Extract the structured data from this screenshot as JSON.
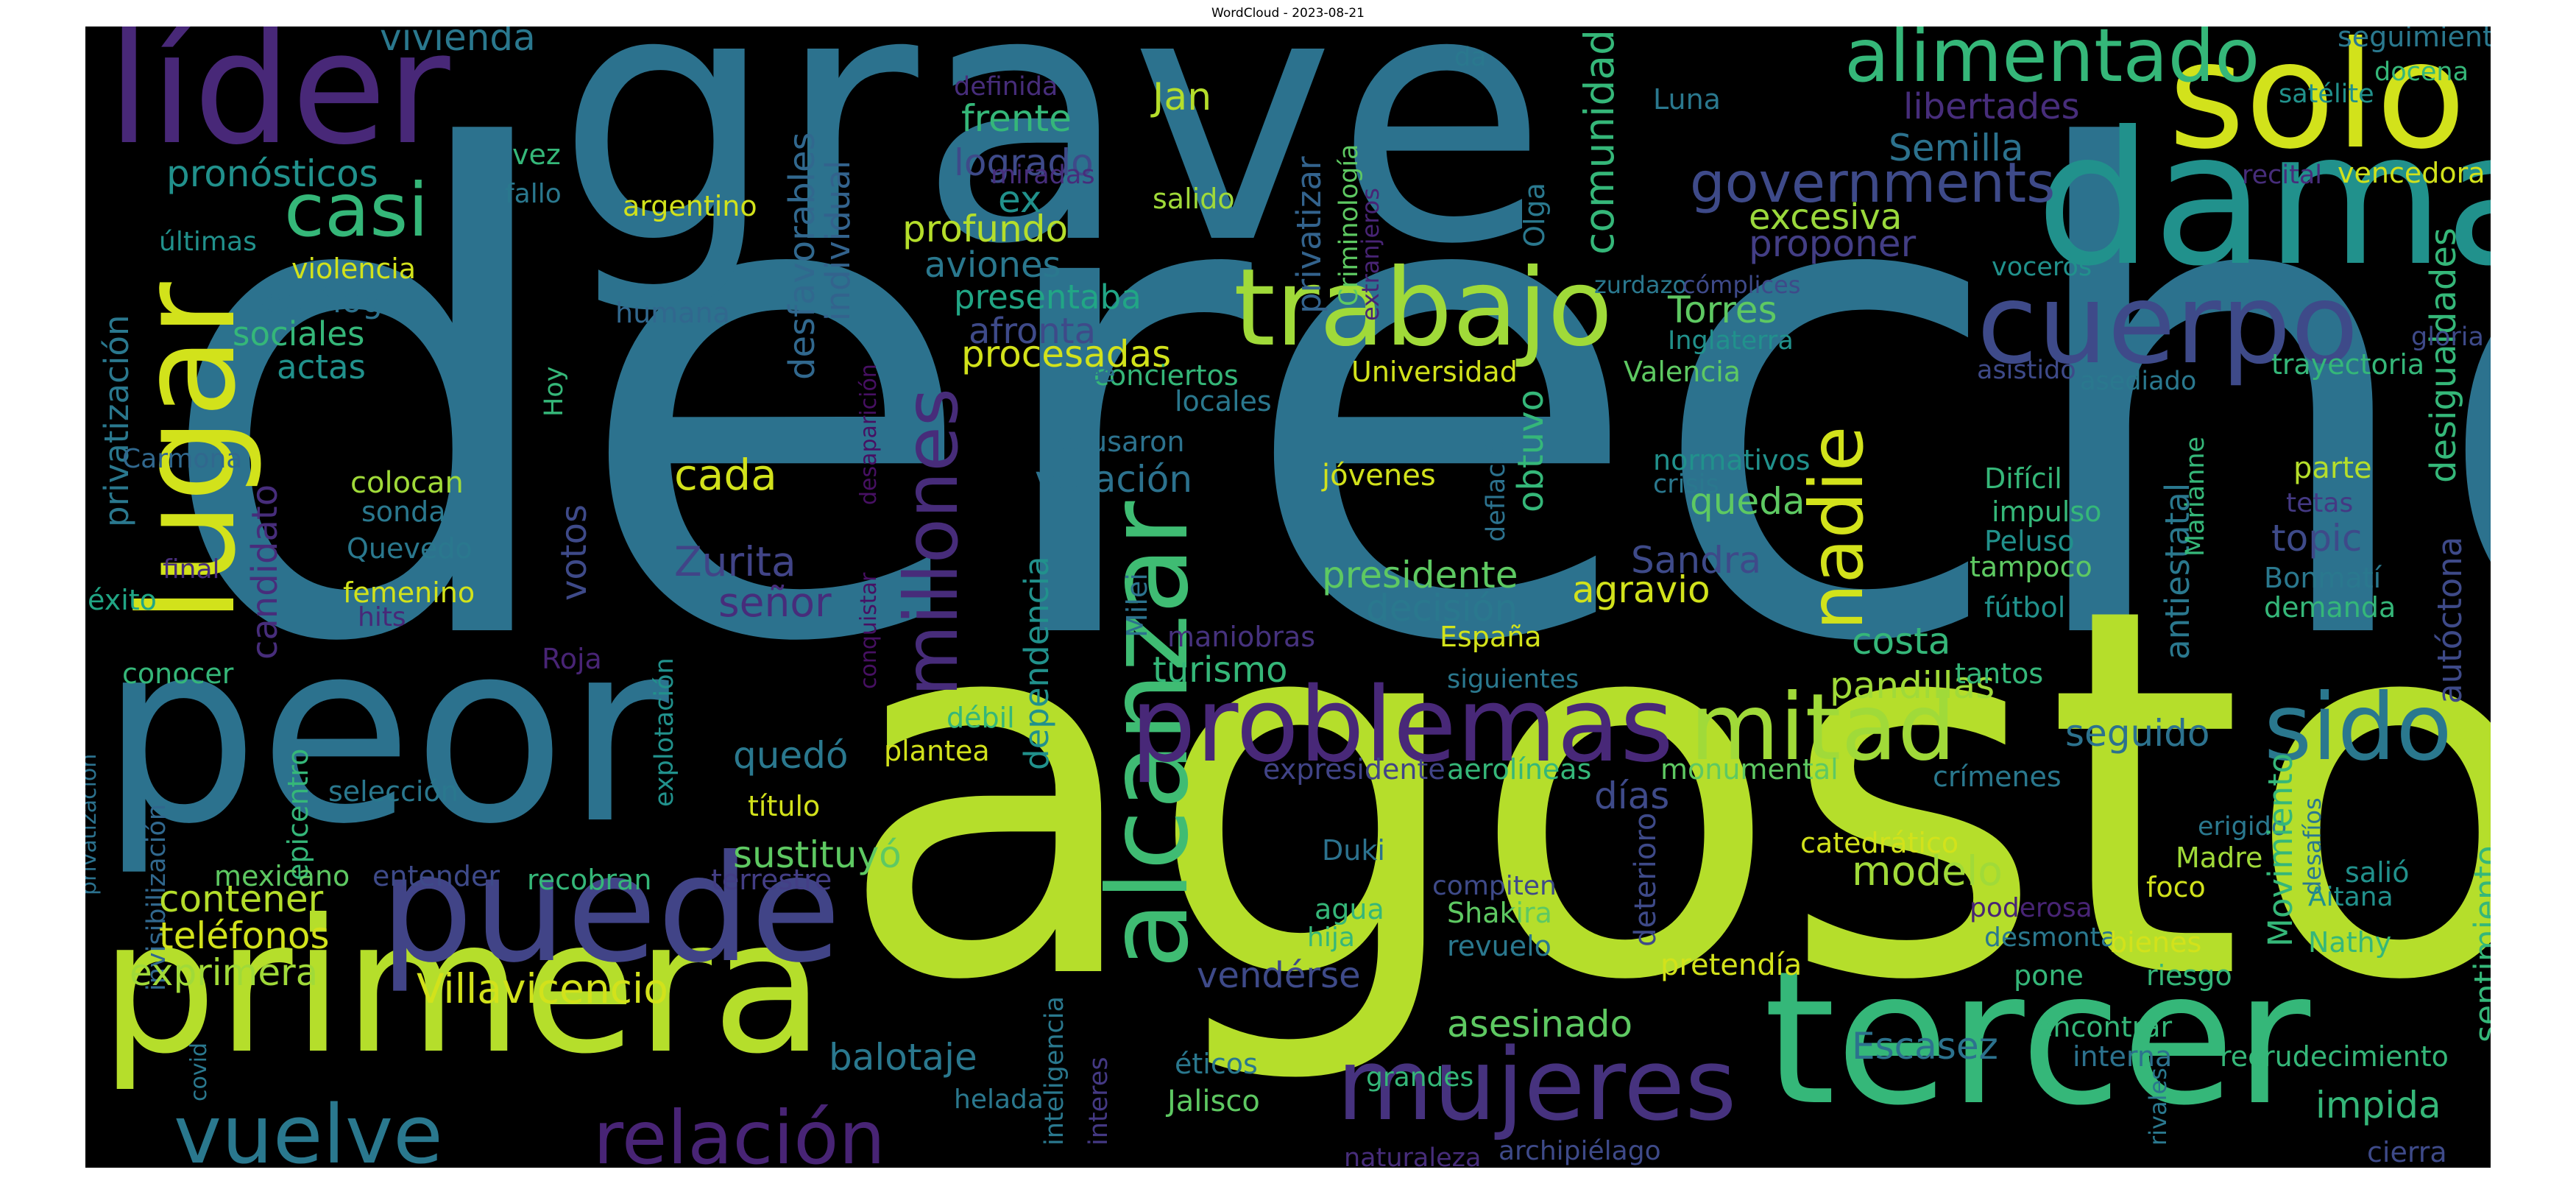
{
  "figure": {
    "title": "WordCloud - 2023-08-21",
    "background": "#000000",
    "colormap": [
      "#440154",
      "#3b528b",
      "#21908d",
      "#5dc963",
      "#c8e020"
    ]
  },
  "words": [
    {
      "text": "derecho",
      "color": "#2c728e"
    },
    {
      "text": "agosto",
      "color": "#b5de2b"
    },
    {
      "text": "grave",
      "color": "#2c728e"
    },
    {
      "text": "peor",
      "color": "#2c728e"
    },
    {
      "text": "primera",
      "color": "#b5de2b"
    },
    {
      "text": "tercer",
      "color": "#35b779"
    },
    {
      "text": "dama",
      "color": "#21918c"
    },
    {
      "text": "solo",
      "color": "#d2e21b"
    },
    {
      "text": "líder",
      "color": "#482878"
    },
    {
      "text": "lugar",
      "color": "#d2e21b"
    },
    {
      "text": "puede",
      "color": "#414487"
    },
    {
      "text": "alcanzar",
      "color": "#3fbc73"
    },
    {
      "text": "trabajo",
      "color": "#a0da39"
    },
    {
      "text": "cuerpo",
      "color": "#3e4a89"
    },
    {
      "text": "problemas",
      "color": "#482878"
    },
    {
      "text": "mitad",
      "color": "#a0da39"
    },
    {
      "text": "sido",
      "color": "#2a788e"
    },
    {
      "text": "mujeres",
      "color": "#46327e"
    },
    {
      "text": "vuelve",
      "color": "#2a788e"
    },
    {
      "text": "relación",
      "color": "#482475"
    },
    {
      "text": "alimentado",
      "color": "#35b779"
    },
    {
      "text": "casi",
      "color": "#35b779"
    },
    {
      "text": "nadie",
      "color": "#d2e21b"
    },
    {
      "text": "millones",
      "color": "#472c7a"
    },
    {
      "text": "governments",
      "color": "#3e4a89"
    },
    {
      "text": "pronósticos",
      "color": "#21918c"
    },
    {
      "text": "vivienda",
      "color": "#2a788e"
    },
    {
      "text": "libertades",
      "color": "#472d7b"
    },
    {
      "text": "Semilla",
      "color": "#2c728e"
    },
    {
      "text": "excesiva",
      "color": "#9bd93c"
    },
    {
      "text": "proponer",
      "color": "#433e85"
    },
    {
      "text": "comunidad",
      "color": "#35b779"
    },
    {
      "text": "frente",
      "color": "#35b779"
    },
    {
      "text": "logrado",
      "color": "#3e4a89"
    },
    {
      "text": "ex",
      "color": "#21918c"
    },
    {
      "text": "profundo",
      "color": "#b5de2b"
    },
    {
      "text": "aviones",
      "color": "#2a788e"
    },
    {
      "text": "presentaba",
      "color": "#21a685"
    },
    {
      "text": "afronta",
      "color": "#3e4a89"
    },
    {
      "text": "procesadas",
      "color": "#d2e21b"
    },
    {
      "text": "Jan",
      "color": "#b5de2b"
    },
    {
      "text": "desfavorables",
      "color": "#31688e"
    },
    {
      "text": "individual",
      "color": "#33638d"
    },
    {
      "text": "sociólogo",
      "color": "#2c728e"
    },
    {
      "text": "sociales",
      "color": "#35b779"
    },
    {
      "text": "actas",
      "color": "#21918c"
    },
    {
      "text": "violencia",
      "color": "#d2e21b"
    },
    {
      "text": "humana",
      "color": "#31688e"
    },
    {
      "text": "privatización",
      "color": "#2a788e"
    },
    {
      "text": "privatización",
      "color": "#2c728e"
    },
    {
      "text": "privatizar",
      "color": "#33638d"
    },
    {
      "text": "Criminología",
      "color": "#5ec962"
    },
    {
      "text": "extranjeros",
      "color": "#482475"
    },
    {
      "text": "Olga",
      "color": "#2a788e"
    },
    {
      "text": "Torres",
      "color": "#5ec962"
    },
    {
      "text": "zurdazo",
      "color": "#2a788e"
    },
    {
      "text": "cómplices",
      "color": "#3e4a89"
    },
    {
      "text": "Inglaterra",
      "color": "#21918c"
    },
    {
      "text": "Valencia",
      "color": "#5ec962"
    },
    {
      "text": "Universidad",
      "color": "#d2e21b"
    },
    {
      "text": "conciertos",
      "color": "#35b779"
    },
    {
      "text": "cree",
      "color": "#2c728e"
    },
    {
      "text": "locales",
      "color": "#2a788e"
    },
    {
      "text": "cada",
      "color": "#d2e21b"
    },
    {
      "text": "votación",
      "color": "#2c728e"
    },
    {
      "text": "causaron",
      "color": "#2c728e"
    },
    {
      "text": "jóvenes",
      "color": "#d2e21b"
    },
    {
      "text": "Zurita",
      "color": "#414487"
    },
    {
      "text": "señor",
      "color": "#472d7b"
    },
    {
      "text": "votos",
      "color": "#3e4a89"
    },
    {
      "text": "colocan",
      "color": "#a0da39"
    },
    {
      "text": "sonda",
      "color": "#2a788e"
    },
    {
      "text": "Quevedo",
      "color": "#2a788e"
    },
    {
      "text": "femenino",
      "color": "#d2e21b"
    },
    {
      "text": "hits",
      "color": "#482878"
    },
    {
      "text": "final",
      "color": "#472d7b"
    },
    {
      "text": "éxito",
      "color": "#21a685"
    },
    {
      "text": "Carmona",
      "color": "#31688e"
    },
    {
      "text": "candidato",
      "color": "#472d7b"
    },
    {
      "text": "conocer",
      "color": "#35b779"
    },
    {
      "text": "Roja",
      "color": "#482475"
    },
    {
      "text": "Hoy",
      "color": "#35b779"
    },
    {
      "text": "desaparición",
      "color": "#471063"
    },
    {
      "text": "conquistar",
      "color": "#471063"
    },
    {
      "text": "dependencia",
      "color": "#21918c"
    },
    {
      "text": "Milei",
      "color": "#2c728e"
    },
    {
      "text": "turismo",
      "color": "#35b779"
    },
    {
      "text": "presidente",
      "color": "#5ec962"
    },
    {
      "text": "decisión",
      "color": "#2a788e"
    },
    {
      "text": "obtuvo",
      "color": "#35b779"
    },
    {
      "text": "deflación",
      "color": "#2c728e"
    },
    {
      "text": "queda",
      "color": "#5ec962"
    },
    {
      "text": "Sandra",
      "color": "#3e4a89"
    },
    {
      "text": "agravio",
      "color": "#d2e21b"
    },
    {
      "text": "costa",
      "color": "#35b779"
    },
    {
      "text": "pandillas",
      "color": "#a0da39"
    },
    {
      "text": "seguido",
      "color": "#2c728e"
    },
    {
      "text": "maniobras",
      "color": "#46327e"
    },
    {
      "text": "España",
      "color": "#d2e21b"
    },
    {
      "text": "siguientes",
      "color": "#2a788e"
    },
    {
      "text": "normativos",
      "color": "#21918c"
    },
    {
      "text": "crisis",
      "color": "#2a788e"
    },
    {
      "text": "Difícil",
      "color": "#35b779"
    },
    {
      "text": "impulso",
      "color": "#35b779"
    },
    {
      "text": "Peluso",
      "color": "#21918c"
    },
    {
      "text": "tampoco",
      "color": "#5ec962"
    },
    {
      "text": "fútbol",
      "color": "#21918c"
    },
    {
      "text": "tantos",
      "color": "#35b779"
    },
    {
      "text": "antiestatal",
      "color": "#2a788e"
    },
    {
      "text": "Marianne",
      "color": "#35b779"
    },
    {
      "text": "parte",
      "color": "#b5de2b"
    },
    {
      "text": "tetas",
      "color": "#443983"
    },
    {
      "text": "topic",
      "color": "#3e4a89"
    },
    {
      "text": "Bonmatí",
      "color": "#2a788e"
    },
    {
      "text": "demanda",
      "color": "#35b779"
    },
    {
      "text": "desigualdades",
      "color": "#35b779"
    },
    {
      "text": "autóctona",
      "color": "#3e4a89"
    },
    {
      "text": "seguimiento",
      "color": "#2a788e"
    },
    {
      "text": "docena",
      "color": "#35b779"
    },
    {
      "text": "satélite",
      "color": "#21918c"
    },
    {
      "text": "recital",
      "color": "#472d7b"
    },
    {
      "text": "vencedora",
      "color": "#d2e21b"
    },
    {
      "text": "voceros",
      "color": "#21918c"
    },
    {
      "text": "asistido",
      "color": "#3e4a89"
    },
    {
      "text": "asediado",
      "color": "#2a788e"
    },
    {
      "text": "trayectoria",
      "color": "#35b779"
    },
    {
      "text": "gloria",
      "color": "#3e4a89"
    },
    {
      "text": "Luna",
      "color": "#2a788e"
    },
    {
      "text": "da",
      "color": "#2a788e"
    },
    {
      "text": "definida",
      "color": "#472d7b"
    },
    {
      "text": "miradas",
      "color": "#472d7b"
    },
    {
      "text": "salido",
      "color": "#a0da39"
    },
    {
      "text": "argentino",
      "color": "#d2e21b"
    },
    {
      "text": "fallo",
      "color": "#2a788e"
    },
    {
      "text": "vez",
      "color": "#35b779"
    },
    {
      "text": "últimas",
      "color": "#21918c"
    },
    {
      "text": "epicentro",
      "color": "#35b779"
    },
    {
      "text": "invisibilización",
      "color": "#31688e"
    },
    {
      "text": "selección",
      "color": "#2a788e"
    },
    {
      "text": "mexicano",
      "color": "#5ec962"
    },
    {
      "text": "entender",
      "color": "#3e4a89"
    },
    {
      "text": "recobran",
      "color": "#35b779"
    },
    {
      "text": "terrestre",
      "color": "#433e85"
    },
    {
      "text": "explotación",
      "color": "#21918c"
    },
    {
      "text": "quedó",
      "color": "#2a788e"
    },
    {
      "text": "débil",
      "color": "#35b779"
    },
    {
      "text": "plantea",
      "color": "#d2e21b"
    },
    {
      "text": "título",
      "color": "#d2e21b"
    },
    {
      "text": "sustituyó",
      "color": "#5ec962"
    },
    {
      "text": "contener",
      "color": "#b5de2b"
    },
    {
      "text": "teléfonos",
      "color": "#d2e21b"
    },
    {
      "text": "exprimera",
      "color": "#a0da39"
    },
    {
      "text": "Villavicencio",
      "color": "#d2e21b"
    },
    {
      "text": "balotaje",
      "color": "#2a788e"
    },
    {
      "text": "inteligencia",
      "color": "#2a788e"
    },
    {
      "text": "interes",
      "color": "#443983"
    },
    {
      "text": "helada",
      "color": "#2a788e"
    },
    {
      "text": "covid",
      "color": "#2a788e"
    },
    {
      "text": "días",
      "color": "#3e4a89"
    },
    {
      "text": "expresidente",
      "color": "#414487"
    },
    {
      "text": "aerolíneas",
      "color": "#35b779"
    },
    {
      "text": "monumental",
      "color": "#5ec962"
    },
    {
      "text": "crímenes",
      "color": "#2a788e"
    },
    {
      "text": "Duki",
      "color": "#2c728e"
    },
    {
      "text": "compiten",
      "color": "#3e4a89"
    },
    {
      "text": "Shakira",
      "color": "#5ec962"
    },
    {
      "text": "revuelo",
      "color": "#2a788e"
    },
    {
      "text": "agua",
      "color": "#35b779"
    },
    {
      "text": "hija",
      "color": "#35b779"
    },
    {
      "text": "deterioro",
      "color": "#3e4a89"
    },
    {
      "text": "vendérse",
      "color": "#3e4a89"
    },
    {
      "text": "pretendía",
      "color": "#d2e21b"
    },
    {
      "text": "modelo",
      "color": "#a0da39"
    },
    {
      "text": "catedrático",
      "color": "#d2e21b"
    },
    {
      "text": "poderosa",
      "color": "#482475"
    },
    {
      "text": "desmonta",
      "color": "#2a788e"
    },
    {
      "text": "pone",
      "color": "#35b779"
    },
    {
      "text": "asesinado",
      "color": "#5ec962"
    },
    {
      "text": "Escasez",
      "color": "#2c728e"
    },
    {
      "text": "encontrar",
      "color": "#35b779"
    },
    {
      "text": "interna",
      "color": "#2c728e"
    },
    {
      "text": "éticos",
      "color": "#2a788e"
    },
    {
      "text": "Jalisco",
      "color": "#5ec962"
    },
    {
      "text": "grandes",
      "color": "#35b779"
    },
    {
      "text": "naturaleza",
      "color": "#472d7b"
    },
    {
      "text": "archipiélago",
      "color": "#3e4a89"
    },
    {
      "text": "erigido",
      "color": "#2a788e"
    },
    {
      "text": "Madre",
      "color": "#a0da39"
    },
    {
      "text": "foco",
      "color": "#d2e21b"
    },
    {
      "text": "Movimiento",
      "color": "#35b779"
    },
    {
      "text": "desafíos",
      "color": "#2a788e"
    },
    {
      "text": "bienes",
      "color": "#d2e21b"
    },
    {
      "text": "riesgo",
      "color": "#35b779"
    },
    {
      "text": "salió",
      "color": "#21918c"
    },
    {
      "text": "Aitana",
      "color": "#21918c"
    },
    {
      "text": "Nathy",
      "color": "#35b779"
    },
    {
      "text": "sentimiento",
      "color": "#35b779"
    },
    {
      "text": "rivales",
      "color": "#2a788e"
    },
    {
      "text": "recrudecimiento",
      "color": "#35b779"
    },
    {
      "text": "impida",
      "color": "#35b779"
    },
    {
      "text": "cierra",
      "color": "#3e4a89"
    }
  ]
}
